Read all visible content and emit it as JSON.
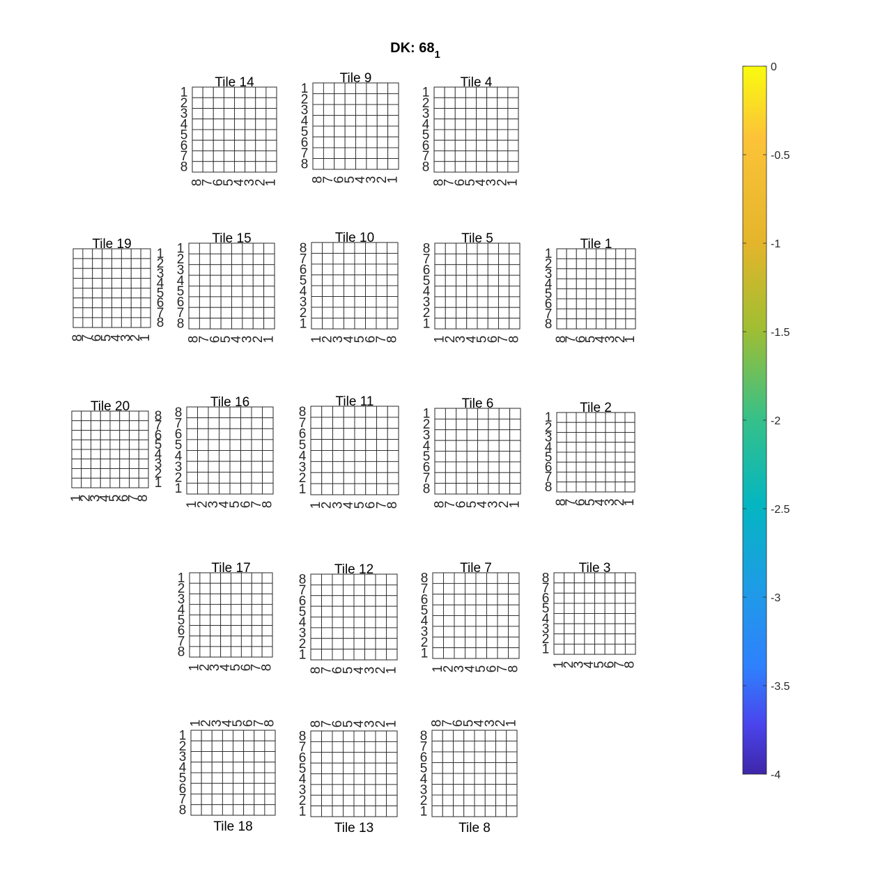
{
  "chart_data": {
    "type": "heatmap",
    "title": "DK: 68",
    "title_subscript": "1",
    "grid": true,
    "colorbar": {
      "ticks": [
        "0",
        "-0.5",
        "-1",
        "-1.5",
        "-2",
        "-2.5",
        "-3",
        "-3.5",
        "-4"
      ],
      "range": [
        -4,
        0
      ],
      "colormap": [
        "#F9FB0E",
        "#FCC338",
        "#E4B52B",
        "#A1BE32",
        "#35C08A",
        "#04B6C1",
        "#1F9BE7",
        "#2F80FD",
        "#4A44EC",
        "#3E26A8"
      ]
    },
    "tiles": [
      {
        "title": "Tile 14",
        "x_ticks": [
          "8",
          "7",
          "6",
          "5",
          "4",
          "3",
          "2",
          "1"
        ],
        "y_ticks": [
          "1",
          "2",
          "3",
          "4",
          "5",
          "6",
          "7",
          "8"
        ],
        "title_side": "top",
        "xtick_side": "bottom",
        "ytick_side": "left"
      },
      {
        "title": "Tile 9",
        "x_ticks": [
          "8",
          "7",
          "6",
          "5",
          "4",
          "3",
          "2",
          "1"
        ],
        "y_ticks": [
          "1",
          "2",
          "3",
          "4",
          "5",
          "6",
          "7",
          "8"
        ],
        "title_side": "top",
        "xtick_side": "bottom",
        "ytick_side": "left"
      },
      {
        "title": "Tile 4",
        "x_ticks": [
          "8",
          "7",
          "6",
          "5",
          "4",
          "3",
          "2",
          "1"
        ],
        "y_ticks": [
          "1",
          "2",
          "3",
          "4",
          "5",
          "6",
          "7",
          "8"
        ],
        "title_side": "top",
        "xtick_side": "bottom",
        "ytick_side": "left"
      },
      {
        "title": "Tile 19",
        "x_ticks": [
          "8",
          "7",
          "6",
          "5",
          "4",
          "3",
          "2",
          "1"
        ],
        "y_ticks": [
          "1",
          "2",
          "3",
          "4",
          "5",
          "6",
          "7",
          "8"
        ],
        "title_side": "top",
        "xtick_side": "bottom",
        "ytick_side": "right"
      },
      {
        "title": "Tile 15",
        "x_ticks": [
          "8",
          "7",
          "6",
          "5",
          "4",
          "3",
          "2",
          "1"
        ],
        "y_ticks": [
          "1",
          "2",
          "3",
          "4",
          "5",
          "6",
          "7",
          "8"
        ],
        "title_side": "top",
        "xtick_side": "bottom",
        "ytick_side": "left"
      },
      {
        "title": "Tile 10",
        "x_ticks": [
          "1",
          "2",
          "3",
          "4",
          "5",
          "6",
          "7",
          "8"
        ],
        "y_ticks": [
          "8",
          "7",
          "6",
          "5",
          "4",
          "3",
          "2",
          "1"
        ],
        "title_side": "top",
        "xtick_side": "bottom",
        "ytick_side": "left"
      },
      {
        "title": "Tile 5",
        "x_ticks": [
          "1",
          "2",
          "3",
          "4",
          "5",
          "6",
          "7",
          "8"
        ],
        "y_ticks": [
          "8",
          "7",
          "6",
          "5",
          "4",
          "3",
          "2",
          "1"
        ],
        "title_side": "top",
        "xtick_side": "bottom",
        "ytick_side": "left"
      },
      {
        "title": "Tile 1",
        "x_ticks": [
          "8",
          "7",
          "6",
          "5",
          "4",
          "3",
          "2",
          "1"
        ],
        "y_ticks": [
          "1",
          "2",
          "3",
          "4",
          "5",
          "6",
          "7",
          "8"
        ],
        "title_side": "top",
        "xtick_side": "bottom",
        "ytick_side": "left"
      },
      {
        "title": "Tile 20",
        "x_ticks": [
          "1",
          "2",
          "3",
          "4",
          "5",
          "6",
          "7",
          "8"
        ],
        "y_ticks": [
          "8",
          "7",
          "6",
          "5",
          "4",
          "3",
          "2",
          "1"
        ],
        "title_side": "top",
        "xtick_side": "bottom",
        "ytick_side": "right"
      },
      {
        "title": "Tile 16",
        "x_ticks": [
          "1",
          "2",
          "3",
          "4",
          "5",
          "6",
          "7",
          "8"
        ],
        "y_ticks": [
          "8",
          "7",
          "6",
          "5",
          "4",
          "3",
          "2",
          "1"
        ],
        "title_side": "top",
        "xtick_side": "bottom",
        "ytick_side": "left"
      },
      {
        "title": "Tile 11",
        "x_ticks": [
          "1",
          "2",
          "3",
          "4",
          "5",
          "6",
          "7",
          "8"
        ],
        "y_ticks": [
          "8",
          "7",
          "6",
          "5",
          "4",
          "3",
          "2",
          "1"
        ],
        "title_side": "top",
        "xtick_side": "bottom",
        "ytick_side": "left"
      },
      {
        "title": "Tile 6",
        "x_ticks": [
          "8",
          "7",
          "6",
          "5",
          "4",
          "3",
          "2",
          "1"
        ],
        "y_ticks": [
          "1",
          "2",
          "3",
          "4",
          "5",
          "6",
          "7",
          "8"
        ],
        "title_side": "top",
        "xtick_side": "bottom",
        "ytick_side": "left"
      },
      {
        "title": "Tile 2",
        "x_ticks": [
          "8",
          "7",
          "6",
          "5",
          "4",
          "3",
          "2",
          "1"
        ],
        "y_ticks": [
          "1",
          "2",
          "3",
          "4",
          "5",
          "6",
          "7",
          "8"
        ],
        "title_side": "top",
        "xtick_side": "bottom",
        "ytick_side": "left"
      },
      {
        "title": "Tile 17",
        "x_ticks": [
          "1",
          "2",
          "3",
          "4",
          "5",
          "6",
          "7",
          "8"
        ],
        "y_ticks": [
          "1",
          "2",
          "3",
          "4",
          "5",
          "6",
          "7",
          "8"
        ],
        "title_side": "top",
        "xtick_side": "bottom",
        "ytick_side": "left"
      },
      {
        "title": "Tile 12",
        "x_ticks": [
          "8",
          "7",
          "6",
          "5",
          "4",
          "3",
          "2",
          "1"
        ],
        "y_ticks": [
          "8",
          "7",
          "6",
          "5",
          "4",
          "3",
          "2",
          "1"
        ],
        "title_side": "top",
        "xtick_side": "bottom",
        "ytick_side": "left"
      },
      {
        "title": "Tile 7",
        "x_ticks": [
          "1",
          "2",
          "3",
          "4",
          "5",
          "6",
          "7",
          "8"
        ],
        "y_ticks": [
          "8",
          "7",
          "6",
          "5",
          "4",
          "3",
          "2",
          "1"
        ],
        "title_side": "top",
        "xtick_side": "bottom",
        "ytick_side": "left"
      },
      {
        "title": "Tile 3",
        "x_ticks": [
          "1",
          "2",
          "3",
          "4",
          "5",
          "6",
          "7",
          "8"
        ],
        "y_ticks": [
          "8",
          "7",
          "6",
          "5",
          "4",
          "3",
          "2",
          "1"
        ],
        "title_side": "top",
        "xtick_side": "bottom",
        "ytick_side": "left"
      },
      {
        "title": "Tile 18",
        "x_ticks": [
          "1",
          "2",
          "3",
          "4",
          "5",
          "6",
          "7",
          "8"
        ],
        "y_ticks": [
          "1",
          "2",
          "3",
          "4",
          "5",
          "6",
          "7",
          "8"
        ],
        "title_side": "bottom",
        "xtick_side": "top",
        "ytick_side": "left"
      },
      {
        "title": "Tile 13",
        "x_ticks": [
          "8",
          "7",
          "6",
          "5",
          "4",
          "3",
          "2",
          "1"
        ],
        "y_ticks": [
          "8",
          "7",
          "6",
          "5",
          "4",
          "3",
          "2",
          "1"
        ],
        "title_side": "bottom",
        "xtick_side": "top",
        "ytick_side": "left"
      },
      {
        "title": "Tile 8",
        "x_ticks": [
          "8",
          "7",
          "6",
          "5",
          "4",
          "3",
          "2",
          "1"
        ],
        "y_ticks": [
          "8",
          "7",
          "6",
          "5",
          "4",
          "3",
          "2",
          "1"
        ],
        "title_side": "bottom",
        "xtick_side": "top",
        "ytick_side": "left"
      }
    ]
  }
}
